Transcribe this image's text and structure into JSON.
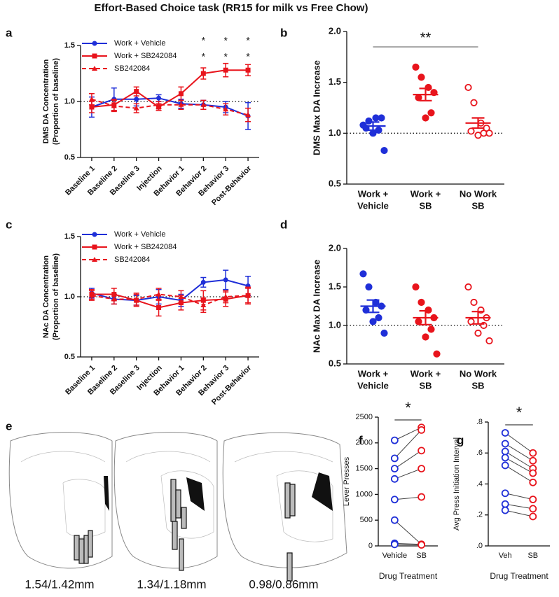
{
  "title": "Effort-Based Choice task (RR15 for milk vs Free Chow)",
  "chart_data": [
    {
      "type": "line",
      "panel": "a",
      "ylabel": [
        "DMS DA Concentration",
        "(Proportion of baseline)"
      ],
      "categories": [
        "Baseline 1",
        "Baseline 2",
        "Baseline 3",
        "Injection",
        "Behavior 1",
        "Behavior 2",
        "Behavior 3",
        "Post-Behavior"
      ],
      "series": [
        {
          "name": "Work + Vehicle",
          "color": "#1f2fd8",
          "marker": "circle",
          "dash": false,
          "values": [
            0.95,
            1.02,
            1.02,
            1.03,
            0.98,
            0.97,
            0.95,
            0.87
          ],
          "errors": [
            0.09,
            0.1,
            0.06,
            0.03,
            0.04,
            0.04,
            0.05,
            0.12
          ]
        },
        {
          "name": "Work + SB242084",
          "color": "#e8141c",
          "marker": "square",
          "dash": false,
          "values": [
            0.95,
            0.97,
            1.09,
            0.95,
            1.07,
            1.25,
            1.28,
            1.28
          ],
          "errors": [
            0.05,
            0.05,
            0.04,
            0.03,
            0.06,
            0.05,
            0.06,
            0.05
          ]
        },
        {
          "name": "SB242084",
          "color": "#e8141c",
          "marker": "triangle",
          "dash": true,
          "values": [
            1.02,
            0.96,
            0.94,
            0.97,
            0.97,
            0.97,
            0.93,
            0.88
          ],
          "errors": [
            0.05,
            0.05,
            0.04,
            0.03,
            0.04,
            0.04,
            0.05,
            0.06
          ]
        }
      ],
      "ylim": [
        0.5,
        1.5
      ],
      "yticks": [
        0.5,
        {
          "value": 1,
          "label": "1.0"
        },
        1.5
      ],
      "ref_line": 1,
      "legend": "upper left",
      "annotations": [
        {
          "x": "Behavior 2",
          "text": "*"
        },
        {
          "x": "Behavior 3",
          "text": "*"
        },
        {
          "x": "Post-Behavior",
          "text": "*"
        },
        {
          "x": "Behavior 2",
          "text": "*"
        },
        {
          "x": "Behavior 3",
          "text": "*"
        },
        {
          "x": "Post-Behavior",
          "text": "*"
        }
      ]
    },
    {
      "type": "strip",
      "panel": "b",
      "ylabel": [
        "DMS Max DA Increase"
      ],
      "categories": [
        [
          "Work +",
          "Vehicle"
        ],
        [
          "Work +",
          "SB"
        ],
        [
          "No Work",
          "SB"
        ]
      ],
      "colors": [
        "#1f2fd8",
        "#e8141c",
        "#e8141c"
      ],
      "filled": [
        true,
        true,
        false
      ],
      "points": [
        [
          1.08,
          1.12,
          1.15,
          1.15,
          1.05,
          1.03,
          1.0,
          0.83
        ],
        [
          1.65,
          1.55,
          1.45,
          1.4,
          1.35,
          1.2,
          1.15
        ],
        [
          1.45,
          1.3,
          1.1,
          1.05,
          1.02,
          1.0,
          0.98,
          1.0
        ]
      ],
      "means": [
        1.07,
        1.38,
        1.1
      ],
      "sems": [
        0.04,
        0.06,
        0.05
      ],
      "ylim": [
        0.5,
        2
      ],
      "yticks": [
        0.5,
        {
          "value": 1,
          "label": "1.0"
        },
        1.5,
        {
          "value": 2,
          "label": "2.0"
        }
      ],
      "ref_line": 1,
      "significance": "**"
    },
    {
      "type": "line",
      "panel": "c",
      "ylabel": [
        "NAc DA Concentration",
        "(Proportion of baseline)"
      ],
      "categories": [
        "Baseline 1",
        "Baseline 2",
        "Baseline 3",
        "Injection",
        "Behavior 1",
        "Behavior 2",
        "Behavior 3",
        "Post-Behavior"
      ],
      "series": [
        {
          "name": "Work + Vehicle",
          "color": "#1f2fd8",
          "marker": "circle",
          "dash": false,
          "values": [
            1.03,
            0.98,
            0.97,
            1.0,
            0.97,
            1.12,
            1.14,
            1.09
          ],
          "errors": [
            0.04,
            0.04,
            0.04,
            0.06,
            0.05,
            0.04,
            0.08,
            0.08
          ]
        },
        {
          "name": "Work + SB242084",
          "color": "#e8141c",
          "marker": "square",
          "dash": false,
          "values": [
            1.02,
            1.02,
            0.97,
            0.91,
            0.95,
            0.97,
            0.98,
            1.01
          ],
          "errors": [
            0.04,
            0.05,
            0.05,
            0.07,
            0.06,
            0.08,
            0.06,
            0.07
          ]
        },
        {
          "name": "SB242084",
          "color": "#e8141c",
          "marker": "triangle",
          "dash": true,
          "values": [
            1.01,
            0.98,
            0.98,
            1.02,
            1.0,
            0.93,
            1.0,
            1.01
          ],
          "errors": [
            0.04,
            0.04,
            0.05,
            0.05,
            0.05,
            0.06,
            0.05,
            0.06
          ]
        }
      ],
      "ylim": [
        0.5,
        1.5
      ],
      "yticks": [
        0.5,
        {
          "value": 1,
          "label": "1.0"
        },
        1.5
      ],
      "ref_line": 1,
      "legend": "upper left"
    },
    {
      "type": "strip",
      "panel": "d",
      "ylabel": [
        "NAc Max DA Increase"
      ],
      "categories": [
        [
          "Work +",
          "Vehicle"
        ],
        [
          "Work +",
          "SB"
        ],
        [
          "No Work",
          "SB"
        ]
      ],
      "colors": [
        "#1f2fd8",
        "#e8141c",
        "#e8141c"
      ],
      "filled": [
        true,
        true,
        false
      ],
      "points": [
        [
          1.67,
          1.5,
          1.3,
          1.25,
          1.2,
          1.1,
          1.05,
          0.9
        ],
        [
          1.5,
          1.3,
          1.2,
          1.1,
          1.05,
          0.95,
          0.85,
          0.63
        ],
        [
          1.5,
          1.3,
          1.2,
          1.1,
          1.05,
          1.0,
          0.9,
          0.8
        ]
      ],
      "means": [
        1.25,
        1.1,
        1.1
      ],
      "sems": [
        0.08,
        0.09,
        0.08
      ],
      "ylim": [
        0.5,
        2
      ],
      "yticks": [
        0.5,
        {
          "value": 1,
          "label": "1.0"
        },
        1.5,
        {
          "value": 2,
          "label": "2.0"
        }
      ],
      "ref_line": 1
    },
    {
      "type": "paired",
      "panel": "f",
      "ylabel": [
        "Lever Presses"
      ],
      "xlabel": "Drug Treatment",
      "categories": [
        "Vehicle",
        "SB"
      ],
      "colors": [
        "#1f2fd8",
        "#e8141c"
      ],
      "groups": [
        [
          2050,
          1700,
          1500,
          1300,
          900,
          500,
          50,
          30
        ],
        [
          2300,
          2250,
          1850,
          1500,
          950,
          30,
          30,
          20
        ]
      ],
      "ylim": [
        0,
        2500
      ],
      "yticks": [
        0,
        500,
        1000,
        1500,
        2000,
        2500
      ],
      "significance": "*"
    },
    {
      "type": "paired",
      "panel": "g",
      "ylabel": [
        "Avg Press Initiation Interval"
      ],
      "xlabel": "Drug Treatment",
      "categories": [
        "Veh",
        "SB"
      ],
      "colors": [
        "#1f2fd8",
        "#e8141c"
      ],
      "groups": [
        [
          0.73,
          0.66,
          0.61,
          0.57,
          0.52,
          0.34,
          0.27,
          0.23
        ],
        [
          0.6,
          0.55,
          0.5,
          0.47,
          0.41,
          0.3,
          0.24,
          0.19
        ]
      ],
      "ylim": [
        0,
        0.8
      ],
      "yticks": [
        {
          "value": 0,
          "label": ".0"
        },
        {
          "value": 0.2,
          "label": ".2"
        },
        {
          "value": 0.4,
          "label": ".4"
        },
        {
          "value": 0.6,
          "label": ".6"
        },
        {
          "value": 0.8,
          "label": ".8"
        }
      ],
      "significance": "*"
    }
  ],
  "sections": {
    "panel": "e",
    "labels": [
      "1.54/1.42mm",
      "1.34/1.18mm",
      "0.98/0.86mm"
    ]
  }
}
